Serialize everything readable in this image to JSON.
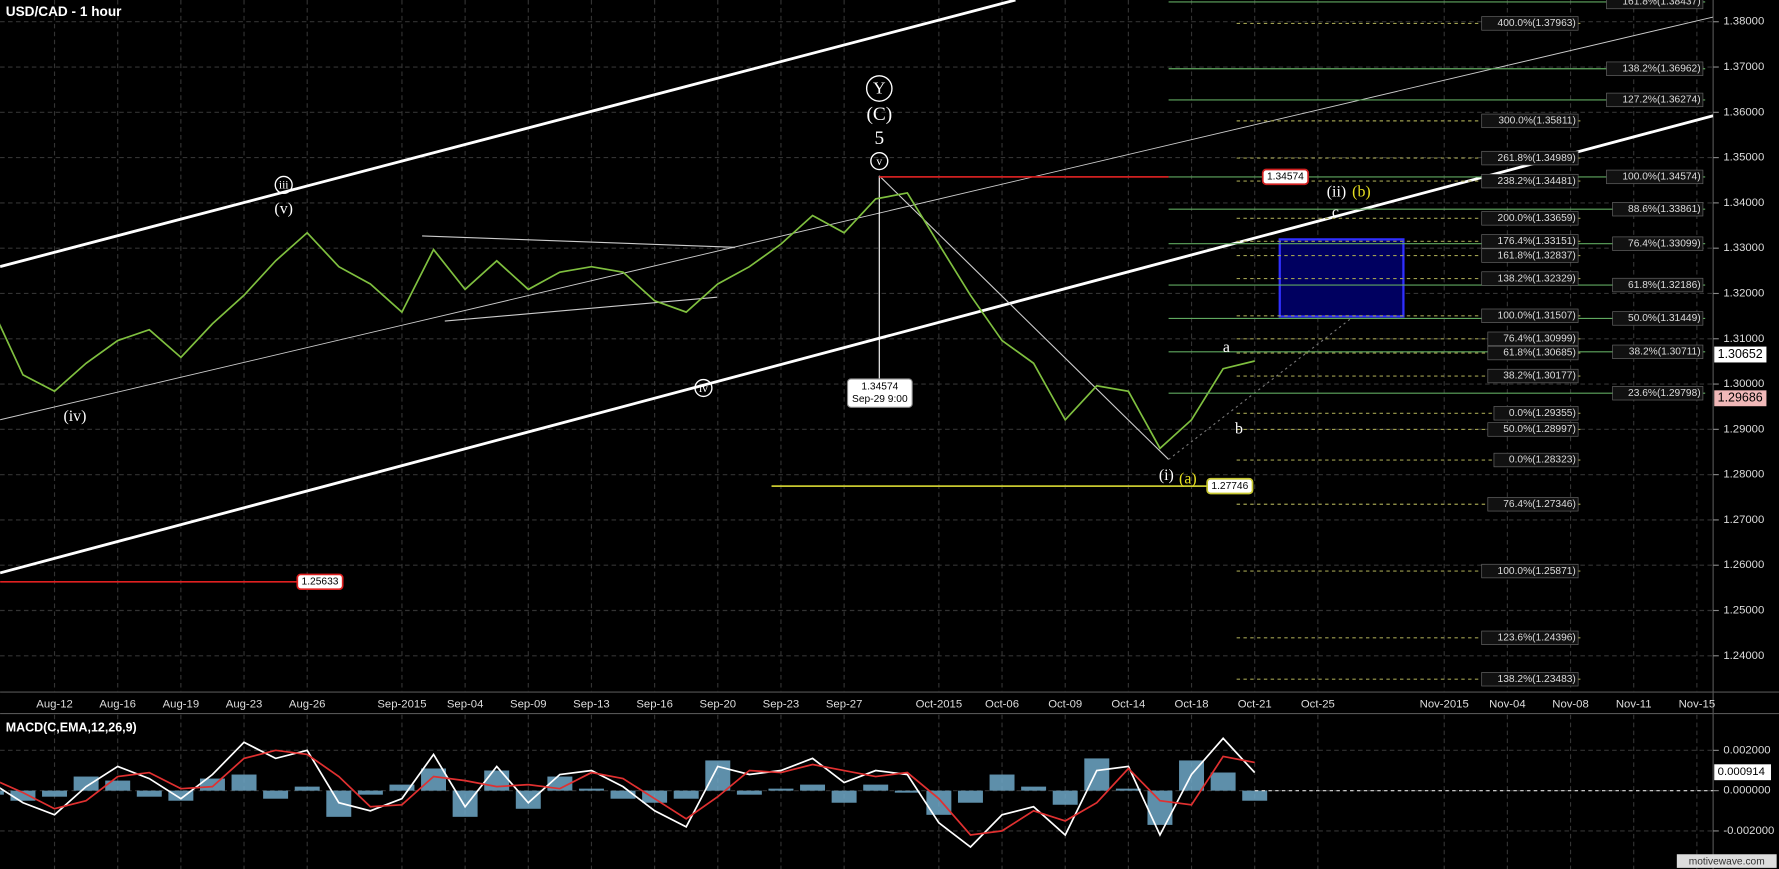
{
  "chart_data": [
    {
      "type": "line",
      "title": "USD/CAD - 1 hour",
      "categories": [
        null,
        null,
        "Aug-12",
        null,
        "Aug-16",
        null,
        "Aug-19",
        null,
        "Aug-23",
        null,
        "Aug-26",
        null,
        null,
        "Sep-2015",
        null,
        "Sep-04",
        null,
        "Sep-09",
        null,
        "Sep-13",
        null,
        "Sep-16",
        null,
        "Sep-20",
        null,
        "Sep-23",
        null,
        "Sep-27",
        null,
        null,
        "Oct-2015",
        null,
        "Oct-06",
        null,
        "Oct-09",
        null,
        "Oct-14",
        null,
        "Oct-18",
        null,
        "Oct-21",
        null,
        "Oct-25",
        null,
        null,
        null,
        "Nov-2015",
        null,
        "Nov-04",
        null,
        "Nov-08",
        null,
        "Nov-11",
        null,
        "Nov-15"
      ],
      "values": [
        1.3171,
        1.302,
        1.2984,
        1.3046,
        1.3096,
        1.312,
        1.3059,
        1.3133,
        1.3196,
        1.3272,
        1.3334,
        1.3259,
        1.3221,
        1.3159,
        1.3297,
        1.3209,
        1.3272,
        1.3209,
        1.3247,
        1.3259,
        1.3247,
        1.3184,
        1.3159,
        1.3221,
        1.3259,
        1.3309,
        1.3372,
        1.3334,
        1.3409,
        1.3422,
        1.3309,
        1.3196,
        1.3096,
        1.3046,
        1.2921,
        1.2996,
        1.2984,
        1.2858,
        1.2921,
        1.3034,
        1.3051,
        null,
        null,
        null,
        null,
        null,
        null,
        null,
        null,
        null,
        null,
        null,
        null,
        null,
        null
      ],
      "color": "#7fbf3f",
      "ylim": [
        1.232,
        1.3848
      ],
      "yticks": [
        {
          "value": 1.24,
          "label": "1.24000"
        },
        {
          "value": 1.25,
          "label": "1.25000"
        },
        {
          "value": 1.26,
          "label": "1.26000"
        },
        {
          "value": 1.27,
          "label": "1.27000"
        },
        {
          "value": 1.28,
          "label": "1.28000"
        },
        {
          "value": 1.29,
          "label": "1.29000"
        },
        {
          "value": 1.3,
          "label": "1.30000"
        },
        {
          "value": 1.31,
          "label": "1.31000"
        },
        {
          "value": 1.32,
          "label": "1.32000"
        },
        {
          "value": 1.33,
          "label": "1.33000"
        },
        {
          "value": 1.34,
          "label": "1.34000"
        },
        {
          "value": 1.35,
          "label": "1.35000"
        },
        {
          "value": 1.36,
          "label": "1.36000"
        },
        {
          "value": 1.37,
          "label": "1.37000"
        },
        {
          "value": 1.38,
          "label": "1.38000"
        }
      ],
      "grid": true,
      "last_price": 1.30652,
      "prior_close": 1.29686,
      "price_lines": [
        {
          "value": 1.34574,
          "color": "#d02020"
        },
        {
          "value": 1.27746,
          "color": "#c8c830"
        },
        {
          "value": 1.25633,
          "color": "#e02020"
        }
      ],
      "callout": {
        "value": 1.34574,
        "label": "Sep-29 9:00"
      },
      "fib_extensions": {
        "color": "#a0a050",
        "levels": [
          {
            "label": "400.0%(1.37963)",
            "value": 1.37963
          },
          {
            "label": "300.0%(1.35811)",
            "value": 1.35811
          },
          {
            "label": "261.8%(1.34989)",
            "value": 1.34989
          },
          {
            "label": "238.2%(1.34481)",
            "value": 1.34481
          },
          {
            "label": "200.0%(1.33659)",
            "value": 1.33659
          },
          {
            "label": "176.4%(1.33151)",
            "value": 1.33151
          },
          {
            "label": "161.8%(1.32837)",
            "value": 1.32837
          },
          {
            "label": "138.2%(1.32329)",
            "value": 1.32329
          },
          {
            "label": "100.0%(1.31507)",
            "value": 1.31507
          },
          {
            "label": "76.4%(1.30999)",
            "value": 1.30999
          },
          {
            "label": "61.8%(1.30685)",
            "value": 1.30685
          },
          {
            "label": "38.2%(1.30177)",
            "value": 1.30177
          },
          {
            "label": "0.0%(1.29355)",
            "value": 1.29355
          },
          {
            "label": "50.0%(1.28997)",
            "value": 1.28997
          },
          {
            "label": "0.0%(1.28323)",
            "value": 1.28323
          },
          {
            "label": "76.4%(1.27346)",
            "value": 1.27346
          },
          {
            "label": "100.0%(1.25871)",
            "value": 1.25871
          },
          {
            "label": "123.6%(1.24396)",
            "value": 1.24396
          },
          {
            "label": "138.2%(1.23483)",
            "value": 1.23483
          }
        ]
      },
      "fib_retracements": {
        "color": "#5fa85f",
        "levels": [
          {
            "label": "161.8%(1.38437)",
            "value": 1.38437
          },
          {
            "label": "138.2%(1.36962)",
            "value": 1.36962
          },
          {
            "label": "127.2%(1.36274)",
            "value": 1.36274
          },
          {
            "label": "100.0%(1.34574)",
            "value": 1.34574
          },
          {
            "label": "88.6%(1.33861)",
            "value": 1.33861
          },
          {
            "label": "76.4%(1.33099)",
            "value": 1.33099
          },
          {
            "label": "61.8%(1.32186)",
            "value": 1.32186
          },
          {
            "label": "50.0%(1.31449)",
            "value": 1.31449
          },
          {
            "label": "38.2%(1.30711)",
            "value": 1.30711
          },
          {
            "label": "23.6%(1.29798)",
            "value": 1.29798
          }
        ]
      },
      "wave_labels": [
        "Y",
        "(C)",
        "5",
        "v",
        "iii",
        "(v)",
        "(iv)",
        "iv",
        "(i)",
        "(a)",
        "a",
        "b",
        "c",
        "(ii)",
        "(b)"
      ]
    },
    {
      "type": "line",
      "title": "MACD(C,EMA,12,26,9)",
      "series": [
        {
          "color": "#6fa8c8",
          "type": "bar",
          "values": [
            -0.0002,
            -0.0005,
            -0.0003,
            0.0007,
            0.0005,
            -0.0003,
            -0.0005,
            0.0006,
            0.0008,
            -0.0004,
            0.0002,
            -0.0013,
            -0.0002,
            0.0003,
            0.0011,
            -0.0013,
            0.001,
            -0.0009,
            0.0007,
            0.0001,
            -0.0004,
            -0.0006,
            -0.0004,
            0.0015,
            -0.0002,
            0.0001,
            0.0003,
            -0.0006,
            0.0003,
            -0.0001,
            -0.0012,
            -0.0006,
            0.0008,
            0.0002,
            -0.0007,
            0.0016,
            0.0001,
            -0.0017,
            0.0015,
            0.0009,
            -0.0005,
            null,
            null,
            null,
            null,
            null,
            null,
            null,
            null,
            null,
            null,
            null,
            null,
            null,
            null
          ]
        },
        {
          "color": "#ffffff",
          "values": [
            0.0004,
            -0.0006,
            -0.0012,
            0.0002,
            0.0012,
            0.0006,
            -0.0004,
            0.0008,
            0.0024,
            0.0016,
            0.002,
            -0.0006,
            -0.001,
            -0.0004,
            0.0018,
            -0.0008,
            0.0012,
            -0.0006,
            0.0008,
            0.001,
            0.0002,
            -0.001,
            -0.0018,
            0.0012,
            0.0008,
            0.001,
            0.0016,
            0.0004,
            0.001,
            0.0008,
            -0.0016,
            -0.0028,
            -0.0012,
            -0.0008,
            -0.0022,
            0.001,
            0.0012,
            -0.0022,
            0.0008,
            0.0026,
            0.0009,
            null,
            null,
            null,
            null,
            null,
            null,
            null,
            null,
            null,
            null,
            null,
            null,
            null,
            null
          ]
        },
        {
          "color": "#e03030",
          "values": [
            0.0006,
            -0.0001,
            -0.0009,
            -0.0005,
            0.0007,
            0.0009,
            0.0001,
            0.0002,
            0.0016,
            0.002,
            0.0018,
            0.0007,
            -0.0008,
            -0.0007,
            0.0007,
            0.0005,
            0.0002,
            0.0003,
            0.0001,
            0.0009,
            0.0006,
            -0.0004,
            -0.0014,
            -0.0003,
            0.001,
            0.0009,
            0.0013,
            0.001,
            0.0007,
            0.0009,
            -0.0004,
            -0.0022,
            -0.002,
            -0.001,
            -0.0015,
            -0.0006,
            0.0011,
            -0.0005,
            -0.0007,
            0.0017,
            0.0014,
            null,
            null,
            null,
            null,
            null,
            null,
            null,
            null,
            null,
            null,
            null,
            null,
            null,
            null
          ]
        }
      ],
      "ylim": [
        -0.00389,
        0.00377
      ],
      "yticks": [
        {
          "value": 0.002,
          "label": "0.002000"
        },
        {
          "value": 0,
          "label": "0.000000"
        },
        {
          "value": -0.002,
          "label": "-0.002000"
        }
      ],
      "last_value": 0.000914
    }
  ],
  "watermark": "motivewave.com"
}
